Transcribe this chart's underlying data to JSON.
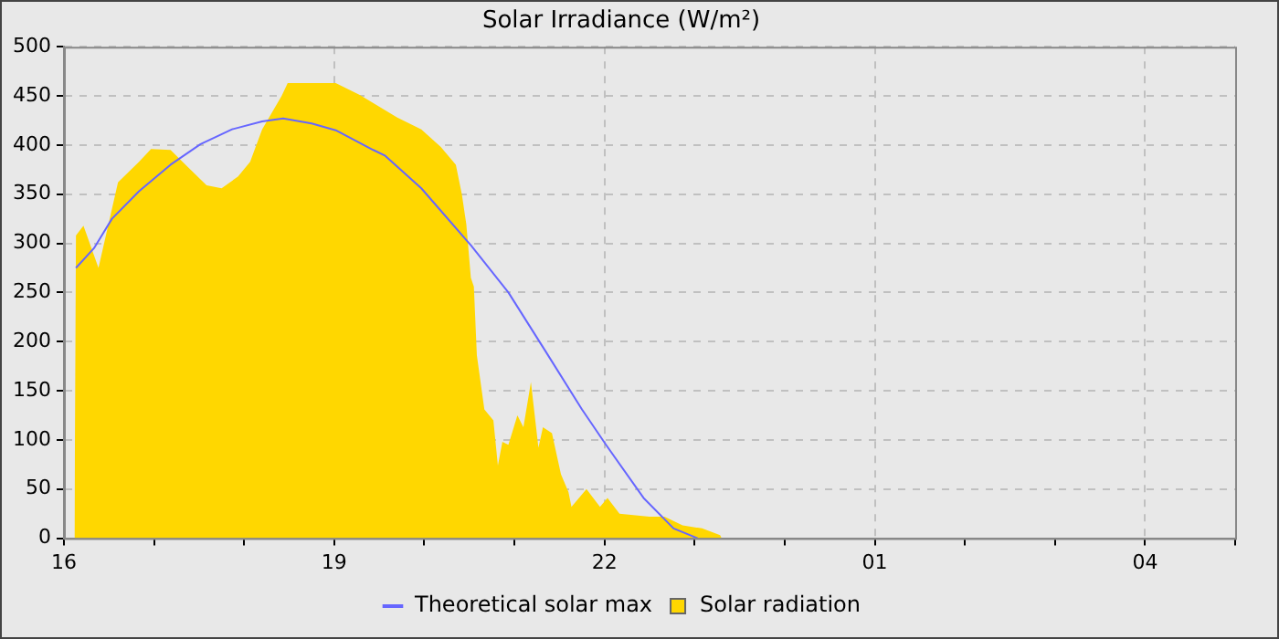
{
  "chart_data": {
    "type": "area",
    "title": "Solar Irradiance (W/m²)",
    "xlim": [
      "--01-01T16:00",
      "--01-02T05:00"
    ],
    "ylim": [
      0,
      500
    ],
    "xticks": [
      {
        "value": "--01-01T16:00",
        "label": "16"
      },
      {
        "value": "--01-01T17:00",
        "label": null
      },
      {
        "value": "--01-01T18:00",
        "label": null
      },
      {
        "value": "--01-01T19:00",
        "label": "19"
      },
      {
        "value": "--01-01T20:00",
        "label": null
      },
      {
        "value": "--01-01T21:00",
        "label": null
      },
      {
        "value": "--01-01T22:00",
        "label": "22"
      },
      {
        "value": "--01-01T23:00",
        "label": null
      },
      {
        "value": "--01-02T00:00",
        "label": null
      },
      {
        "value": "--01-02T01:00",
        "label": "01"
      },
      {
        "value": "--01-02T02:00",
        "label": null
      },
      {
        "value": "--01-02T03:00",
        "label": null
      },
      {
        "value": "--01-02T04:00",
        "label": "04"
      },
      {
        "value": "--01-02T05:00",
        "label": null
      }
    ],
    "yticks": [
      0,
      50,
      100,
      150,
      200,
      250,
      300,
      350,
      400,
      450,
      500
    ],
    "grid": true,
    "legend": "bottom",
    "marker": "none",
    "series": [
      {
        "name": "Theoretical solar max",
        "type": "line",
        "color": "#6666ff",
        "x": [
          "--01-01T16:08",
          "--01-01T16:20",
          "--01-01T16:32",
          "--01-01T16:50",
          "--01-01T17:11",
          "--01-01T17:31",
          "--01-01T17:52",
          "--01-01T18:12",
          "--01-01T18:26",
          "--01-01T18:45",
          "--01-01T19:01",
          "--01-01T19:26",
          "--01-01T19:34",
          "--01-01T19:58",
          "--01-01T20:31",
          "--01-01T20:56",
          "--01-01T21:20",
          "--01-01T21:45",
          "--01-01T22:01",
          "--01-01T22:26",
          "--01-01T22:46",
          "--01-01T23:02"
        ],
        "values": [
          275,
          295,
          325,
          353,
          380,
          401,
          416,
          424,
          427,
          422,
          415,
          395,
          389,
          356,
          298,
          250,
          192,
          131,
          95,
          41,
          10,
          0
        ]
      },
      {
        "name": "Solar radiation",
        "type": "area",
        "color": "#ffd700",
        "x": [
          "--01-01T16:07",
          "--01-01T16:08",
          "--01-01T16:13",
          "--01-01T16:23",
          "--01-01T16:36",
          "--01-01T16:50",
          "--01-01T16:58",
          "--01-01T17:11",
          "--01-01T17:23",
          "--01-01T17:35",
          "--01-01T17:45",
          "--01-01T17:56",
          "--01-01T18:04",
          "--01-01T18:12",
          "--01-01T18:25",
          "--01-01T18:29",
          "--01-01T19:01",
          "--01-01T19:17",
          "--01-01T19:42",
          "--01-01T19:58",
          "--01-01T20:11",
          "--01-01T20:21",
          "--01-01T20:25",
          "--01-01T20:28",
          "--01-01T20:31",
          "--01-01T20:33",
          "--01-01T20:35",
          "--01-01T20:40",
          "--01-01T20:46",
          "--01-01T20:49",
          "--01-01T20:52",
          "--01-01T20:56",
          "--01-01T21:02",
          "--01-01T21:06",
          "--01-01T21:11",
          "--01-01T21:16",
          "--01-01T21:19",
          "--01-01T21:25",
          "--01-01T21:31",
          "--01-01T21:36",
          "--01-01T21:38",
          "--01-01T21:48",
          "--01-01T21:57",
          "--01-01T22:02",
          "--01-01T22:10",
          "--01-01T22:30",
          "--01-01T22:40",
          "--01-01T22:52",
          "--01-01T23:05",
          "--01-01T23:17",
          "--01-01T23:18"
        ],
        "values": [
          0,
          308,
          318,
          275,
          362,
          383,
          396,
          395,
          377,
          359,
          356,
          368,
          383,
          416,
          450,
          463,
          463,
          451,
          428,
          416,
          398,
          380,
          350,
          319,
          265,
          256,
          186,
          131,
          120,
          74,
          98,
          95,
          125,
          113,
          159,
          92,
          113,
          107,
          65,
          47,
          32,
          50,
          32,
          41,
          25,
          22,
          22,
          13,
          10,
          3,
          0
        ]
      }
    ]
  }
}
